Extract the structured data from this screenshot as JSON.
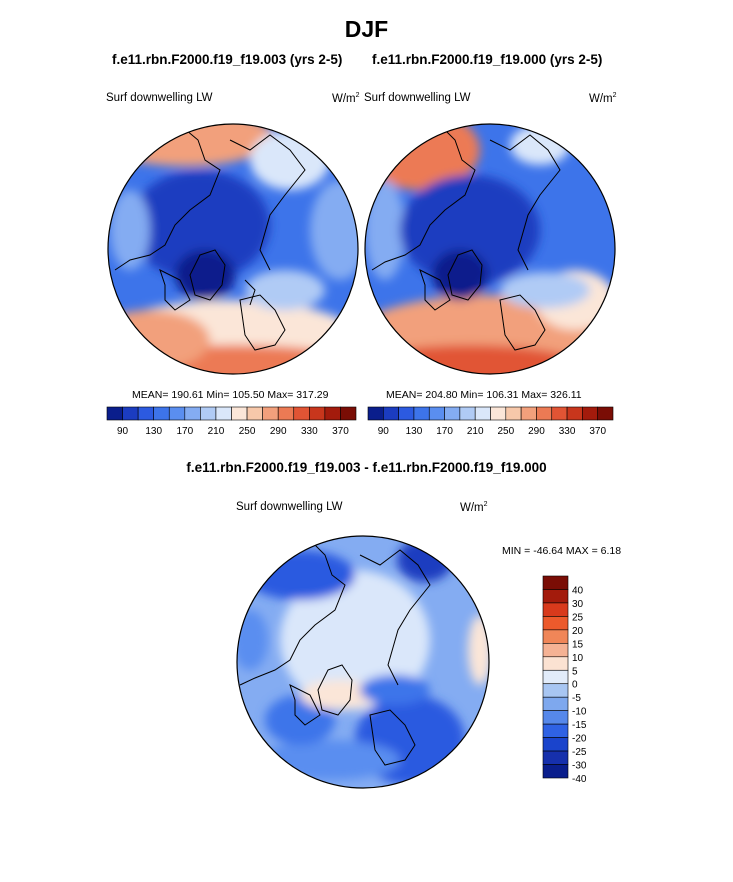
{
  "title": "DJF",
  "panels": [
    {
      "title": "f.e11.rbn.F2000.f19_f19.003 (yrs 2-5)",
      "variable": "Surf downwelling LW",
      "units_base": "W/m",
      "units_exp": "2",
      "stats": "MEAN= 190.61  Min= 105.50  Max= 317.29"
    },
    {
      "title": "f.e11.rbn.F2000.f19_f19.000 (yrs 2-5)",
      "variable": "Surf downwelling LW",
      "units_base": "W/m",
      "units_exp": "2",
      "stats": "MEAN= 204.80  Min= 106.31  Max= 326.11"
    },
    {
      "title": "f.e11.rbn.F2000.f19_f19.003 - f.e11.rbn.F2000.f19_f19.000",
      "variable": "Surf downwelling LW",
      "units_base": "W/m",
      "units_exp": "2",
      "stats": "MIN = -46.64 MAX =   6.18"
    }
  ],
  "colorbar_abs": {
    "labels": [
      "90",
      "130",
      "170",
      "210",
      "250",
      "290",
      "330",
      "370"
    ],
    "colors": [
      "#0a1e8c",
      "#1b3cc0",
      "#2c5ae0",
      "#3d74ea",
      "#5a8ef0",
      "#84acf2",
      "#b0cbf5",
      "#dae7fa",
      "#fbe6d8",
      "#f7c8aa",
      "#f2a07c",
      "#ec7a54",
      "#e15434",
      "#c8361c",
      "#a31b0c",
      "#7a0d05"
    ]
  },
  "colorbar_diff": {
    "labels": [
      "40",
      "30",
      "25",
      "20",
      "15",
      "10",
      "5",
      "0",
      "-5",
      "-10",
      "-15",
      "-20",
      "-25",
      "-30",
      "-40"
    ],
    "colors": [
      "#7a0d05",
      "#a31b0c",
      "#d83a1c",
      "#ec5a2c",
      "#f08658",
      "#f5b294",
      "#fbe2d2",
      "#e2ecfa",
      "#a8c6f2",
      "#7ea8ee",
      "#5688ea",
      "#2f62e4",
      "#1a44cc",
      "#1630ac",
      "#0a1e8c"
    ]
  }
}
